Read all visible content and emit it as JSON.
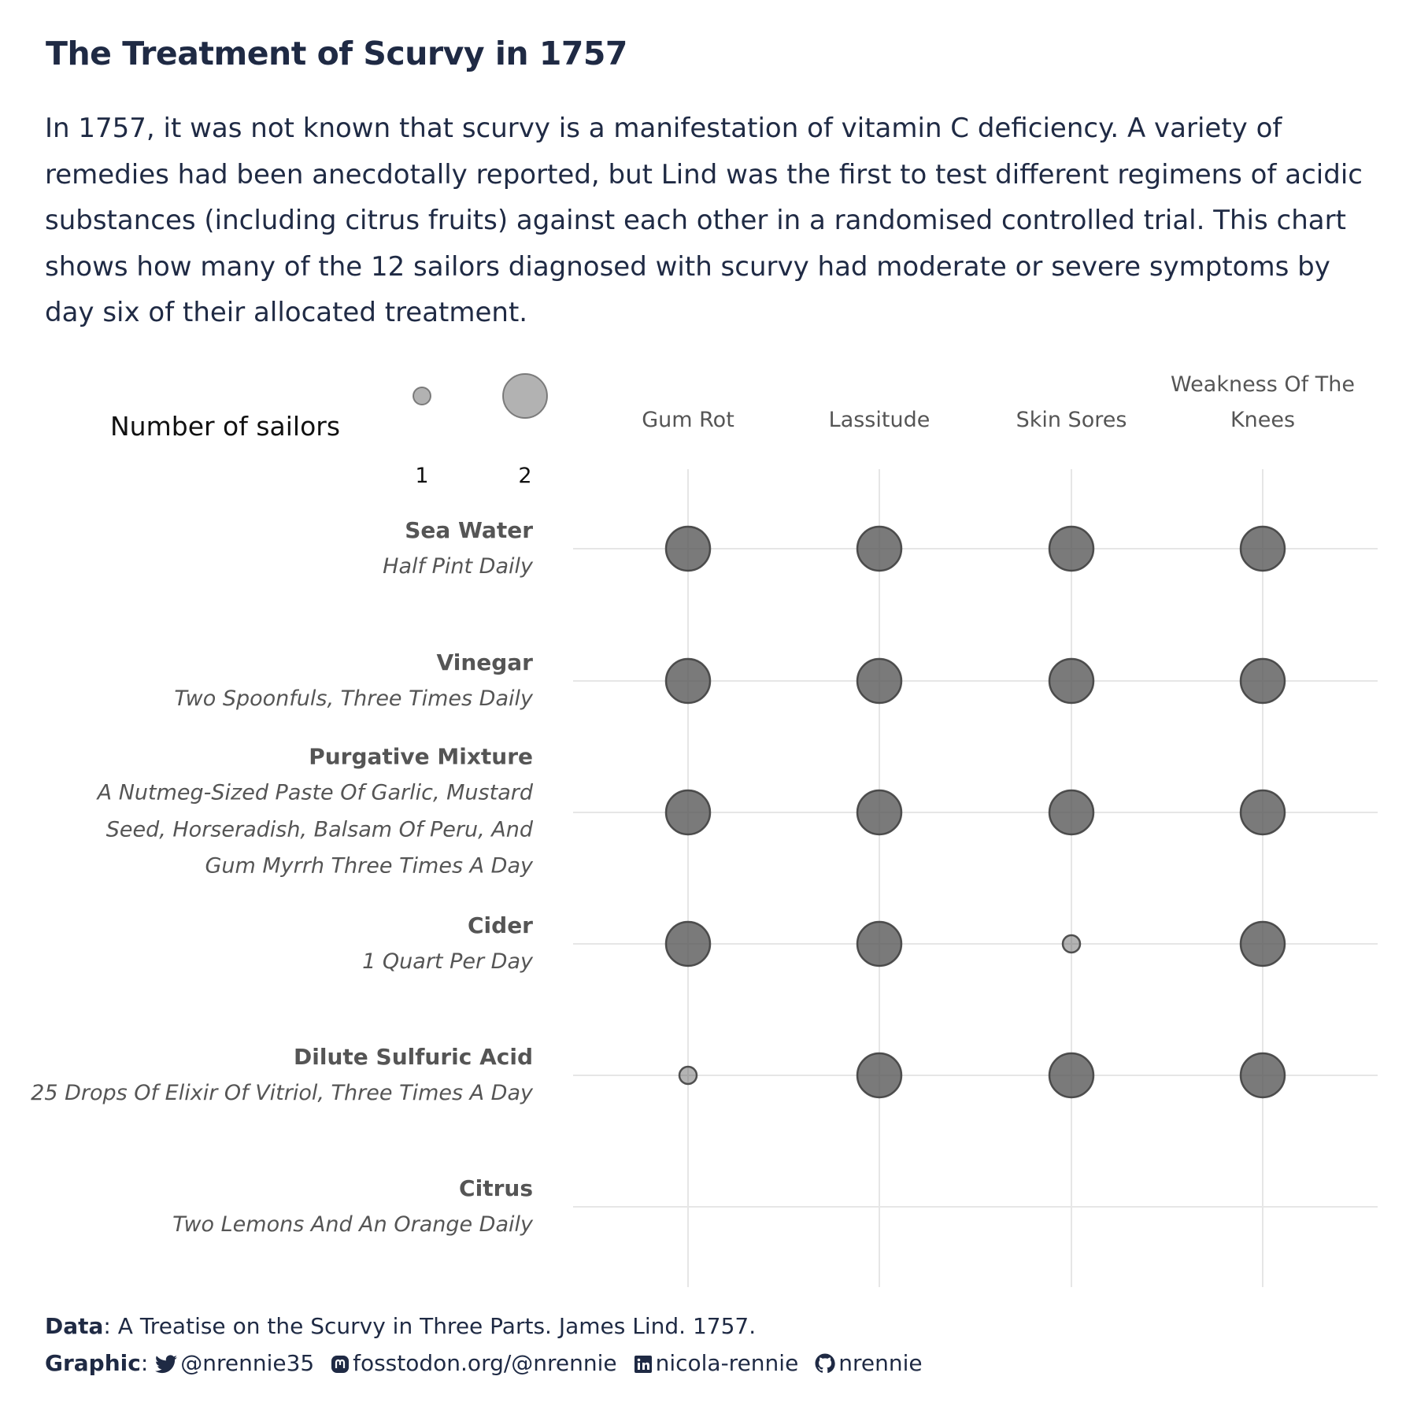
{
  "title": "The Treatment of Scurvy in 1757",
  "subtitle": "In 1757, it was not known that scurvy is a manifestation of vitamin C deficiency. A variety of remedies had been anecdotally reported, but Lind was the first to test different regimens of acidic substances (including citrus fruits) against each other in a randomised controlled trial. This chart shows how many of the 12 sailors diagnosed with scurvy had moderate or severe symptoms by day six of their allocated treatment.",
  "chart_data": {
    "type": "scatter",
    "x_categories": [
      "Gum Rot",
      "Lassitude",
      "Skin Sores",
      "Weakness Of The Knees"
    ],
    "y_categories": [
      {
        "name": "Sea Water",
        "description": "Half Pint Daily"
      },
      {
        "name": "Vinegar",
        "description": "Two Spoonfuls, Three Times Daily"
      },
      {
        "name": "Purgative Mixture",
        "description": "A Nutmeg-Sized Paste Of Garlic, Mustard Seed, Horseradish, Balsam Of Peru, And Gum Myrrh Three Times A Day"
      },
      {
        "name": "Cider",
        "description": "1 Quart Per Day"
      },
      {
        "name": "Dilute Sulfuric Acid",
        "description": "25 Drops Of Elixir Of Vitriol, Three Times A Day"
      },
      {
        "name": "Citrus",
        "description": "Two Lemons And An Orange Daily"
      }
    ],
    "values": [
      [
        2,
        2,
        2,
        2
      ],
      [
        2,
        2,
        2,
        2
      ],
      [
        2,
        2,
        2,
        2
      ],
      [
        2,
        2,
        1,
        2
      ],
      [
        1,
        2,
        2,
        2
      ],
      [
        0,
        0,
        0,
        0
      ]
    ],
    "size_legend": {
      "title": "Number of sailors",
      "values": [
        1,
        2
      ]
    },
    "point_color": "#595959",
    "grid": true
  },
  "caption": {
    "data_label": "Data",
    "data_text": "A Treatise on the Scurvy in Three Parts. James Lind. 1757.",
    "graphic_label": "Graphic",
    "twitter": "@nrennie35",
    "mastodon": "fosstodon.org/@nrennie",
    "linkedin": "nicola-rennie",
    "github": "nrennie"
  }
}
